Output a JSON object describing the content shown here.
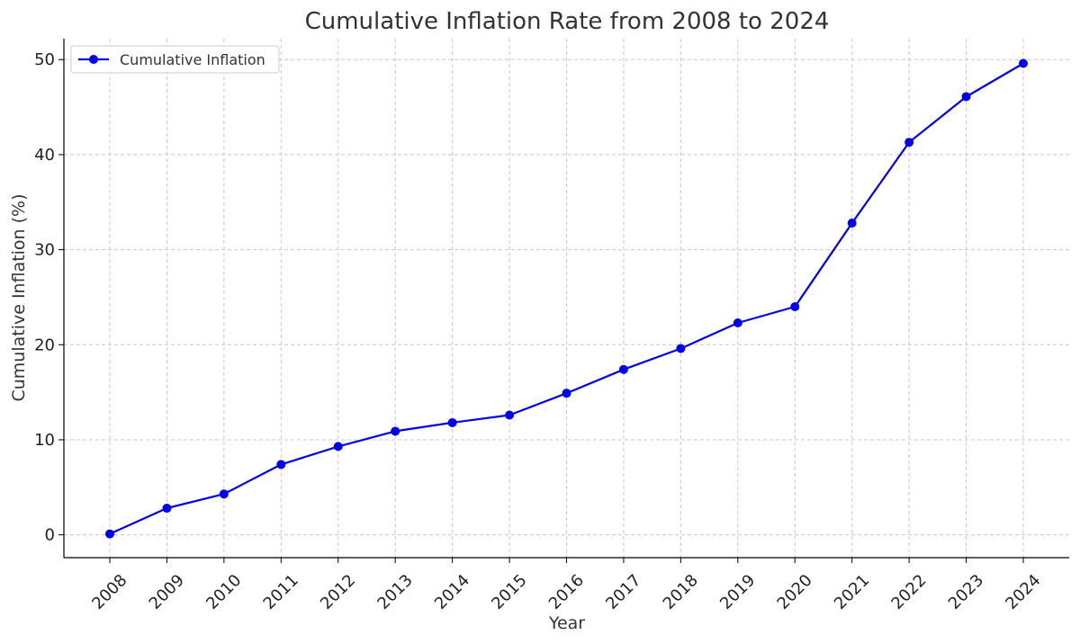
{
  "chart_data": {
    "type": "line",
    "title": "Cumulative Inflation Rate from 2008 to 2024",
    "xlabel": "Year",
    "ylabel": "Cumulative Inflation (%)",
    "categories": [
      "2008",
      "2009",
      "2010",
      "2011",
      "2012",
      "2013",
      "2014",
      "2015",
      "2016",
      "2017",
      "2018",
      "2019",
      "2020",
      "2021",
      "2022",
      "2023",
      "2024"
    ],
    "series": [
      {
        "name": "Cumulative Inflation",
        "color": "#0000ee",
        "marker": "circle",
        "values": [
          0.1,
          2.8,
          4.3,
          7.4,
          9.3,
          10.9,
          11.8,
          12.6,
          14.9,
          17.4,
          19.6,
          22.3,
          24.0,
          32.8,
          41.3,
          46.1,
          49.6
        ]
      }
    ],
    "ylim": [
      -2.4,
      52.2
    ],
    "yticks": [
      0,
      10,
      20,
      30,
      40,
      50
    ],
    "grid": true,
    "legend_position": "top-left",
    "xtick_rotation": -45
  }
}
